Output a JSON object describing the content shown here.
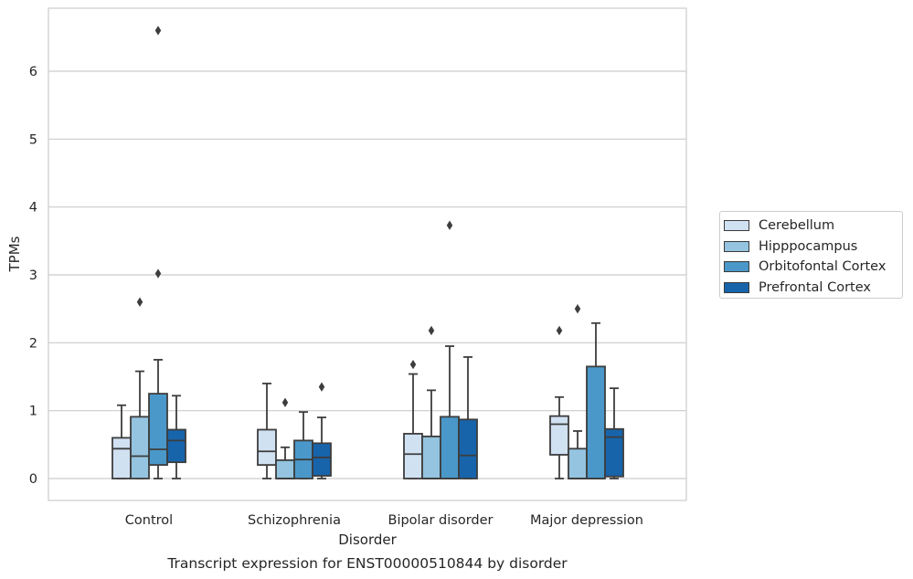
{
  "chart_data": {
    "type": "boxplot",
    "title": "Transcript expression for ENST00000510844 by disorder",
    "xlabel": "Disorder",
    "ylabel": "TPMs",
    "ylim": [
      -0.32,
      6.95
    ],
    "yticks": [
      0,
      1,
      2,
      3,
      4,
      5,
      6
    ],
    "grid": true,
    "legend_position": "right",
    "categories": [
      "Control",
      "Schizophrenia",
      "Bipolar disorder",
      "Major depression"
    ],
    "series": [
      {
        "name": "Cerebellum",
        "color": "#d0e1f2",
        "boxes": [
          {
            "whislo": 0.0,
            "q1": 0.0,
            "med": 0.44,
            "q3": 0.6,
            "whishi": 1.08,
            "fliers": []
          },
          {
            "whislo": 0.0,
            "q1": 0.2,
            "med": 0.4,
            "q3": 0.72,
            "whishi": 1.4,
            "fliers": []
          },
          {
            "whislo": 0.0,
            "q1": 0.0,
            "med": 0.36,
            "q3": 0.66,
            "whishi": 1.54,
            "fliers": [
              1.68
            ]
          },
          {
            "whislo": 0.0,
            "q1": 0.35,
            "med": 0.8,
            "q3": 0.92,
            "whishi": 1.2,
            "fliers": [
              2.18
            ]
          }
        ]
      },
      {
        "name": "Hipppocampus",
        "color": "#94c4df",
        "boxes": [
          {
            "whislo": 0.0,
            "q1": 0.0,
            "med": 0.33,
            "q3": 0.91,
            "whishi": 1.58,
            "fliers": [
              2.6
            ]
          },
          {
            "whislo": 0.0,
            "q1": 0.0,
            "med": 0.0,
            "q3": 0.27,
            "whishi": 0.46,
            "fliers": [
              1.12
            ]
          },
          {
            "whislo": 0.0,
            "q1": 0.0,
            "med": 0.0,
            "q3": 0.62,
            "whishi": 1.3,
            "fliers": [
              2.18
            ]
          },
          {
            "whislo": 0.0,
            "q1": 0.0,
            "med": 0.0,
            "q3": 0.44,
            "whishi": 0.7,
            "fliers": [
              2.5
            ]
          }
        ]
      },
      {
        "name": "Orbitofontal Cortex",
        "color": "#4a98c9",
        "boxes": [
          {
            "whislo": 0.0,
            "q1": 0.2,
            "med": 0.43,
            "q3": 1.25,
            "whishi": 1.75,
            "fliers": [
              3.02,
              6.6
            ]
          },
          {
            "whislo": 0.0,
            "q1": 0.0,
            "med": 0.28,
            "q3": 0.56,
            "whishi": 0.98,
            "fliers": []
          },
          {
            "whislo": 0.0,
            "q1": 0.0,
            "med": 0.0,
            "q3": 0.91,
            "whishi": 1.95,
            "fliers": [
              3.73
            ]
          },
          {
            "whislo": 0.0,
            "q1": 0.0,
            "med": 0.0,
            "q3": 1.65,
            "whishi": 2.29,
            "fliers": []
          }
        ]
      },
      {
        "name": "Prefrontal Cortex",
        "color": "#1764ab",
        "boxes": [
          {
            "whislo": 0.0,
            "q1": 0.24,
            "med": 0.56,
            "q3": 0.72,
            "whishi": 1.22,
            "fliers": []
          },
          {
            "whislo": 0.0,
            "q1": 0.04,
            "med": 0.31,
            "q3": 0.52,
            "whishi": 0.9,
            "fliers": [
              1.35
            ]
          },
          {
            "whislo": 0.0,
            "q1": 0.0,
            "med": 0.34,
            "q3": 0.87,
            "whishi": 1.79,
            "fliers": []
          },
          {
            "whislo": 0.0,
            "q1": 0.03,
            "med": 0.61,
            "q3": 0.73,
            "whishi": 1.33,
            "fliers": []
          }
        ]
      }
    ]
  }
}
